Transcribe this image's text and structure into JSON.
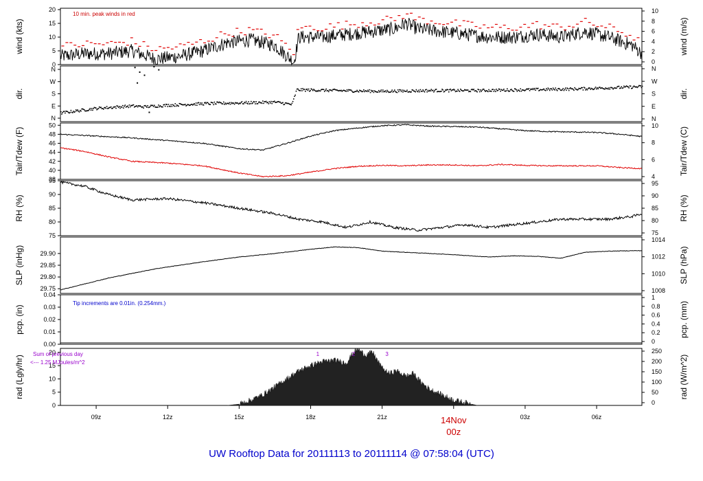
{
  "title": "UW Rooftop Data for 20111113  to  20111114 @ 07:58:04  (UTC)",
  "colors": {
    "trace": "#000000",
    "peak": "#e00000",
    "red_text": "#cc0000",
    "blue_text": "#0000cc",
    "purple_text": "#9900cc"
  },
  "x_axis": {
    "range_hours": [
      7.5,
      31.9
    ],
    "ticks": [
      {
        "hour": 9,
        "label": "09z"
      },
      {
        "hour": 12,
        "label": "12z"
      },
      {
        "hour": 15,
        "label": "15z"
      },
      {
        "hour": 18,
        "label": "18z"
      },
      {
        "hour": 21,
        "label": "21z"
      },
      {
        "hour": 24,
        "label": ""
      },
      {
        "hour": 27,
        "label": "03z"
      },
      {
        "hour": 30,
        "label": "06z"
      }
    ],
    "day_label": "14Nov",
    "day_label_sub": "00z"
  },
  "panels": [
    {
      "id": "wind",
      "left_label": "wind (kts)",
      "right_label": "wind (m/s)",
      "left_ticks": [
        "0",
        "5",
        "10",
        "15",
        "20"
      ],
      "left_ticks_values": [
        0,
        5,
        10,
        15,
        20
      ],
      "right_ticks": [
        "0",
        "2",
        "4",
        "6",
        "8",
        "10"
      ],
      "right_ticks_values": [
        0,
        2,
        4,
        6,
        8,
        10
      ],
      "ylim": [
        0,
        20.5
      ],
      "annotation": "10 min. peak winds in red"
    },
    {
      "id": "dir",
      "left_label": "dir.",
      "right_label": "dir.",
      "left_ticks": [
        "N",
        "E",
        "S",
        "W",
        "N"
      ],
      "right_ticks": [
        "N",
        "E",
        "S",
        "W",
        "N"
      ],
      "ylim": [
        0,
        360
      ]
    },
    {
      "id": "temp",
      "left_label": "Tair/Tdew (F)",
      "right_label": "Tair/Tdew (C)",
      "left_ticks": [
        "38",
        "40",
        "42",
        "44",
        "46",
        "48",
        "50"
      ],
      "left_ticks_values": [
        38,
        40,
        42,
        44,
        46,
        48,
        50
      ],
      "right_ticks": [
        "4",
        "6",
        "8",
        "10"
      ],
      "ylim": [
        38,
        50.5
      ]
    },
    {
      "id": "rh",
      "left_label": "RH (%)",
      "right_label": "RH (%)",
      "left_ticks": [
        "75",
        "80",
        "85",
        "90",
        "95"
      ],
      "left_ticks_values": [
        75,
        80,
        85,
        90,
        95
      ],
      "right_ticks": [
        "75",
        "80",
        "85",
        "90",
        "95"
      ],
      "ylim": [
        75,
        95
      ]
    },
    {
      "id": "slp",
      "left_label": "SLP (inHg)",
      "right_label": "SLP (hPa)",
      "left_ticks": [
        "29.75",
        "29.80",
        "29.85",
        "29.90"
      ],
      "left_ticks_values": [
        29.75,
        29.8,
        29.85,
        29.9
      ],
      "right_ticks": [
        "1008",
        "1010",
        "1012",
        "1014"
      ],
      "ylim": [
        29.73,
        29.97
      ]
    },
    {
      "id": "pcp",
      "left_label": "pcp. (in)",
      "right_label": "pcp. (mm)",
      "left_ticks": [
        "0.00",
        "0.01",
        "0.02",
        "0.03",
        "0.04"
      ],
      "left_ticks_values": [
        0,
        0.01,
        0.02,
        0.03,
        0.04
      ],
      "right_ticks": [
        "0",
        "0.2",
        "0.4",
        "0.6",
        "0.8",
        "1"
      ],
      "ylim": [
        0,
        0.04
      ],
      "annotation": "Tip increments are 0.01in. (0.254mm.)"
    },
    {
      "id": "rad",
      "left_label": "rad (Lgly/hr)",
      "right_label": "rad (W/m^2)",
      "left_ticks": [
        "0",
        "5",
        "10",
        "15",
        "20"
      ],
      "left_ticks_values": [
        0,
        5,
        10,
        15,
        20
      ],
      "right_ticks": [
        "0",
        "50",
        "100",
        "150",
        "200",
        "250"
      ],
      "ylim": [
        0,
        21.5
      ],
      "annotation_line1": "Sum of previous day",
      "annotation_line2": "<--- 1.25 MJoules/m^2",
      "markers": [
        {
          "hour": 18.3,
          "label": "1"
        },
        {
          "hour": 19.8,
          "label": "2"
        },
        {
          "hour": 21.2,
          "label": "3"
        }
      ]
    }
  ],
  "chart_data": {
    "type": "line",
    "x_unit": "hours UTC since 2011-11-13 00z",
    "wind_kts": {
      "x": [
        7.5,
        8.5,
        9.5,
        10.5,
        11.5,
        12.5,
        13.5,
        14.5,
        15.5,
        16.5,
        17.3,
        17.5,
        18.5,
        19.5,
        20.5,
        21.5,
        22.0,
        22.5,
        23.5,
        24.5,
        25.5,
        26.5,
        27.5,
        28.5,
        29.5,
        30.5,
        31.5,
        31.9
      ],
      "y": [
        3,
        4,
        4,
        5,
        2,
        3,
        5,
        8,
        9,
        7,
        1,
        10,
        10,
        11,
        12,
        13,
        15,
        13,
        12,
        11,
        10,
        10,
        11,
        10,
        12,
        10,
        7,
        4
      ]
    },
    "dir_deg": {
      "x": [
        7.5,
        9,
        10.5,
        11,
        12,
        13.5,
        15,
        16.5,
        17.2,
        17.4,
        19,
        21,
        23,
        25,
        27,
        29,
        31,
        31.9
      ],
      "y": [
        55,
        85,
        100,
        95,
        105,
        115,
        120,
        125,
        110,
        205,
        200,
        195,
        200,
        200,
        205,
        210,
        220,
        225
      ]
    },
    "tair_F": {
      "x": [
        7.5,
        9,
        10.5,
        12,
        13.5,
        15,
        16,
        17,
        18,
        19,
        20,
        21,
        22,
        23,
        24,
        25,
        26,
        27,
        28,
        29,
        30,
        31,
        31.9
      ],
      "y": [
        48.0,
        47.6,
        47.2,
        46.6,
        46.0,
        44.8,
        44.5,
        46.0,
        47.6,
        48.8,
        49.4,
        49.9,
        50.1,
        49.8,
        49.7,
        49.6,
        49.2,
        48.8,
        48.6,
        48.5,
        48.4,
        48.0,
        47.5
      ]
    },
    "tdew_F": {
      "x": [
        7.5,
        8.5,
        9.5,
        10.5,
        12,
        13.5,
        15,
        16,
        17,
        18,
        19,
        20,
        21,
        22,
        23,
        24,
        25,
        26,
        27,
        28,
        29,
        30,
        31,
        31.9
      ],
      "y": [
        45.0,
        44.2,
        43.0,
        42.0,
        41.6,
        41.0,
        39.4,
        38.6,
        38.8,
        39.6,
        40.4,
        40.9,
        41.1,
        41.0,
        41.2,
        41.2,
        41.0,
        41.3,
        41.1,
        41.0,
        41.0,
        41.0,
        40.6,
        40.4
      ]
    },
    "rh_pct": {
      "x": [
        7.5,
        8.5,
        9.5,
        10.5,
        12,
        13.5,
        15,
        16.5,
        17.5,
        18.5,
        19.5,
        20.5,
        21.5,
        22.5,
        23.5,
        24.5,
        25.5,
        26.5,
        27.5,
        28.5,
        29.5,
        30.5,
        31.5,
        31.9
      ],
      "y": [
        94.5,
        93,
        90,
        88,
        88.5,
        87,
        85,
        83,
        81,
        80,
        78,
        80,
        78,
        77,
        78,
        79,
        78,
        79,
        80,
        81,
        81,
        81,
        82,
        83
      ]
    },
    "slp_inHg": {
      "x": [
        7.5,
        8.5,
        9.5,
        10.5,
        11.5,
        12.5,
        13.5,
        15,
        16.5,
        18,
        19,
        20,
        21,
        22,
        23,
        24,
        25,
        25.5,
        26.5,
        27.5,
        28.5,
        29.5,
        30.5,
        31.5,
        31.9
      ],
      "y": [
        29.745,
        29.77,
        29.795,
        29.815,
        29.835,
        29.85,
        29.865,
        29.885,
        29.9,
        29.918,
        29.928,
        29.925,
        29.91,
        29.905,
        29.9,
        29.895,
        29.888,
        29.885,
        29.89,
        29.888,
        29.88,
        29.905,
        29.91,
        29.912,
        29.912
      ]
    },
    "pcp_in": {
      "x": [
        7.5,
        31.9
      ],
      "y": [
        0,
        0
      ]
    },
    "rad_lgly_hr": {
      "x": [
        14.5,
        15.0,
        15.5,
        16,
        16.5,
        17,
        17.5,
        18,
        18.5,
        19,
        19.5,
        19.8,
        20,
        20.3,
        20.6,
        21,
        21.3,
        21.6,
        22,
        22.3,
        22.6,
        23,
        23.5,
        24,
        24.5,
        25
      ],
      "y": [
        0,
        0.5,
        2,
        4,
        7,
        10,
        13,
        15,
        16.5,
        17,
        16,
        20,
        21,
        19,
        20,
        14,
        12,
        13,
        11,
        12,
        9,
        6,
        4,
        2,
        1,
        0
      ]
    }
  }
}
